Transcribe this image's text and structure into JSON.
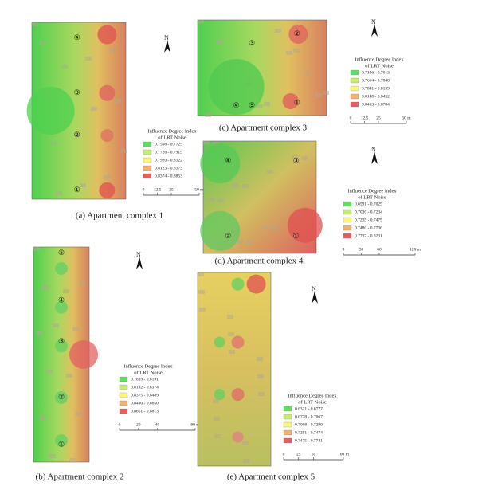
{
  "panels": [
    {
      "caption": "(a) Apartment complex 1",
      "legend": {
        "title": [
          "Influence Degree Index",
          "of LRT Noise"
        ],
        "items": [
          "0.7508 - 0.7725",
          "0.7726 - 0.7919",
          "0.7920 - 0.8122",
          "0.8123 - 0.8373",
          "0.8374 - 0.8853"
        ]
      },
      "scale": [
        "0",
        "12.5",
        "25",
        "50 m"
      ],
      "north": "N",
      "buildings": [
        "④",
        "③",
        "②",
        "①"
      ]
    },
    {
      "caption": "(c) Apartment complex 3",
      "legend": {
        "title": [
          "Influence Degree Index",
          "of LRT Noise"
        ],
        "items": [
          "0.7106 - 0.7613",
          "0.7614 - 0.7840",
          "0.7841 - 0.8139",
          "0.8140 - 0.8432",
          "0.8433 - 0.8784"
        ]
      },
      "scale": [
        "0",
        "12.5",
        "25",
        "50 m"
      ],
      "north": "N",
      "buildings": [
        "③",
        "②",
        "④",
        "⑤",
        "①"
      ]
    },
    {
      "caption": "(d) Apartment complex 4",
      "legend": {
        "title": [
          "Influence Degree Index",
          "of LRT Noise"
        ],
        "items": [
          "0.6591 - 0.7029",
          "0.7030 - 0.7234",
          "0.7235 - 0.7479",
          "0.7480 - 0.7736",
          "0.7737 - 0.8231"
        ]
      },
      "scale": [
        "0",
        "30",
        "60",
        "120 m"
      ],
      "north": "N",
      "buildings": [
        "④",
        "③",
        "②",
        "①"
      ]
    },
    {
      "caption": "(b) Apartment complex 2",
      "legend": {
        "title": [
          "Influence Degree Index",
          "of LRT Noise"
        ],
        "items": [
          "0.7839 - 0.8191",
          "0.8192 - 0.8374",
          "0.8375 - 0.8489",
          "0.8490 - 0.8650",
          "0.8651 - 0.8813"
        ]
      },
      "scale": [
        "0",
        "20",
        "40",
        "80 m"
      ],
      "north": "N",
      "buildings": [
        "⑤",
        "④",
        "③",
        "②",
        "①"
      ]
    },
    {
      "caption": "(e) Apartment complex 5",
      "legend": {
        "title": [
          "Influence Degree Index",
          "of LRT Noise"
        ],
        "items": [
          "0.6321 - 0.6777",
          "0.6778 - 0.7067",
          "0.7068 - 0.7290",
          "0.7291 - 0.7474",
          "0.7475 - 0.7741"
        ]
      },
      "scale": [
        "0",
        "25",
        "50",
        "100 m"
      ],
      "north": "N",
      "buildings": []
    }
  ]
}
